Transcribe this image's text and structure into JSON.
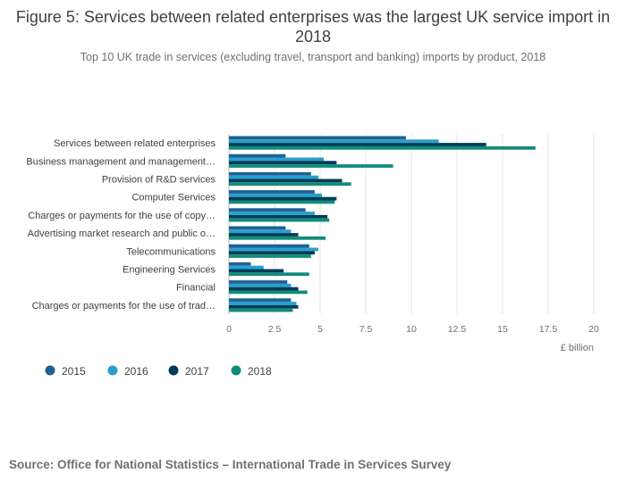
{
  "title": "Figure 5: Services between related enterprises was the largest UK service import in 2018",
  "subtitle": "Top 10 UK trade in services (excluding travel, transport and banking) imports by product, 2018",
  "source": "Source: Office for National Statistics – International Trade in Services Survey",
  "colors": {
    "2015": "#206095",
    "2016": "#27a0cc",
    "2017": "#003c57",
    "2018": "#118c7b"
  },
  "chart_data": {
    "type": "bar",
    "orientation": "horizontal",
    "title": "Figure 5: Services between related enterprises was the largest UK service import in 2018",
    "xlabel": "£ billion",
    "ylabel": "",
    "xlim": [
      0,
      20
    ],
    "xticks": [
      0,
      2.5,
      5,
      7.5,
      10,
      12.5,
      15,
      17.5,
      20
    ],
    "xtick_labels": [
      "0",
      "2.5",
      "5",
      "7.5",
      "10",
      "12.5",
      "15",
      "17.5",
      "20"
    ],
    "grid": true,
    "legend_position": "bottom-left",
    "categories": [
      "Services between related enterprises",
      "Business management and management…",
      "Provision of R&D services",
      "Computer Services",
      "Charges or payments for the use of copy…",
      "Advertising market research and public o…",
      "Telecommunications",
      "Engineering Services",
      "Financial",
      "Charges or payments for the use of trad…"
    ],
    "series": [
      {
        "name": "2015",
        "values": [
          9.7,
          3.1,
          4.5,
          4.7,
          4.2,
          3.1,
          4.4,
          1.2,
          3.2,
          3.4
        ]
      },
      {
        "name": "2016",
        "values": [
          11.5,
          5.2,
          4.9,
          5.1,
          4.7,
          3.4,
          4.9,
          1.9,
          3.4,
          3.7
        ]
      },
      {
        "name": "2017",
        "values": [
          14.1,
          5.9,
          6.2,
          5.9,
          5.4,
          3.8,
          4.7,
          3.0,
          3.8,
          3.8
        ]
      },
      {
        "name": "2018",
        "values": [
          16.8,
          9.0,
          6.7,
          5.8,
          5.5,
          5.3,
          4.5,
          4.4,
          4.3,
          3.5
        ]
      }
    ]
  }
}
